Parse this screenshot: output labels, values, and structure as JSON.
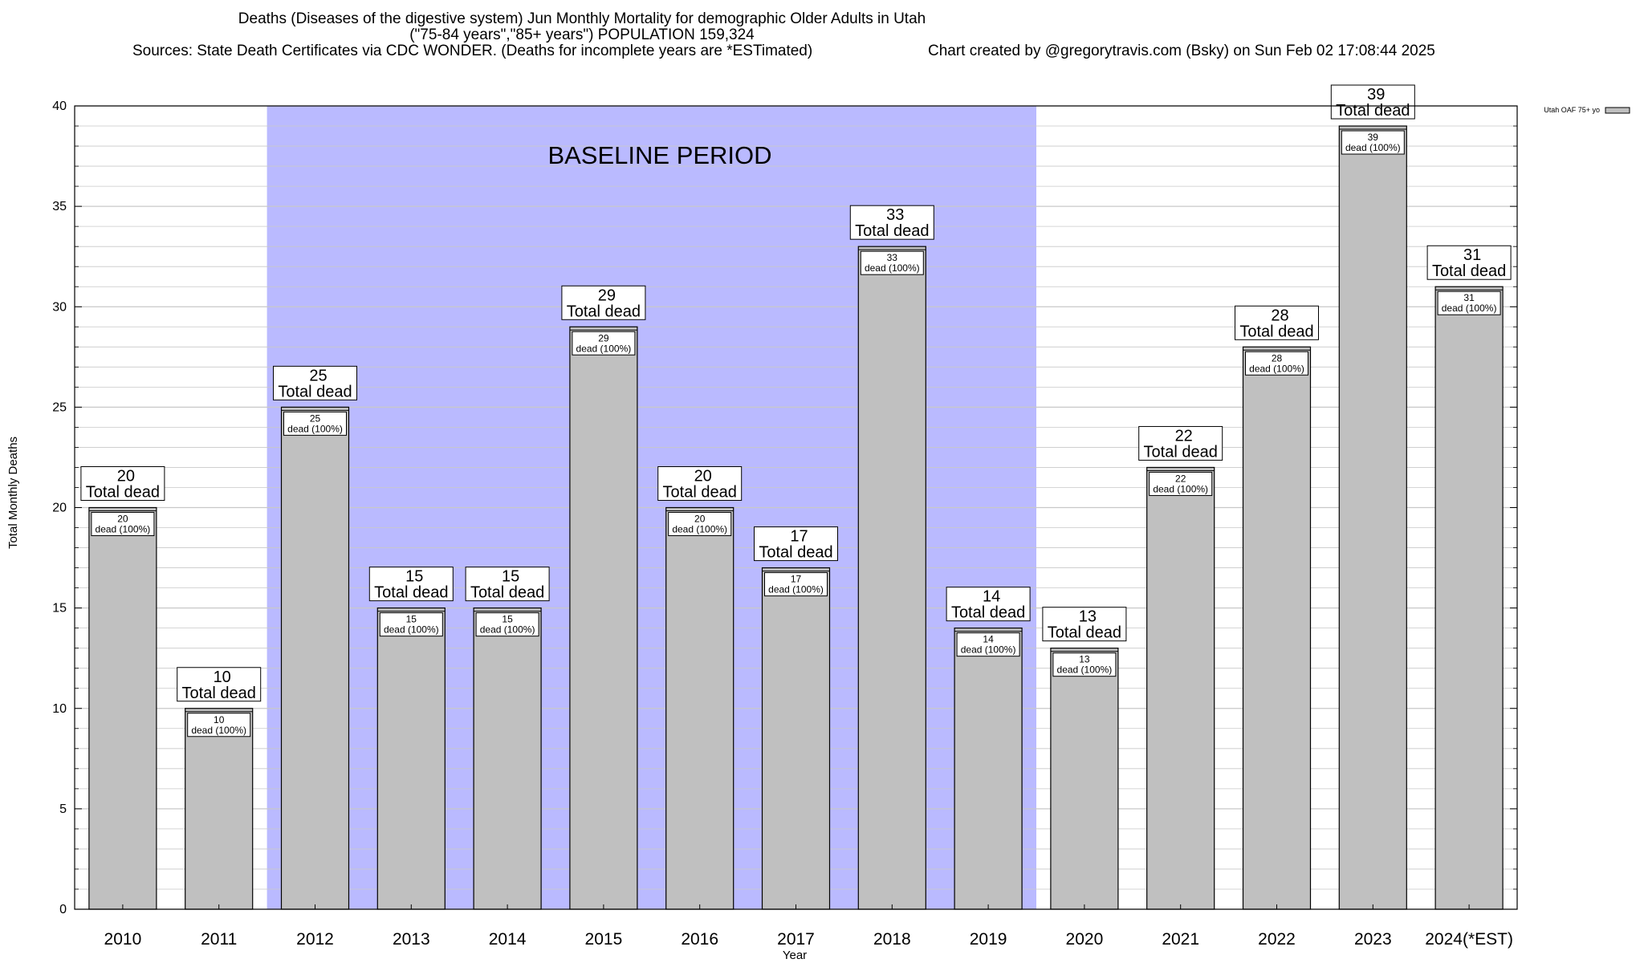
{
  "title": {
    "line1": "Deaths (Diseases of the digestive system) Jun Monthly Mortality for demographic Older Adults in Utah",
    "line2": "(\"75-84 years\",\"85+ years\") POPULATION 159,324",
    "line3_left": "Sources: State Death Certificates via CDC WONDER. (Deaths for incomplete years are *ESTimated)",
    "line3_right": "Chart created by @gregorytravis.com (Bsky) on Sun Feb 02 17:08:44 2025"
  },
  "colors": {
    "bar_fill": "#c0c0c0",
    "baseline_band": "#babaff",
    "grid": "#c8c8c8"
  },
  "chart_data": {
    "type": "bar",
    "title": "Deaths (Diseases of the digestive system) Jun Monthly Mortality for demographic Older Adults in Utah",
    "xlabel": "Year",
    "ylabel": "Total Monthly Deaths",
    "ylim": [
      0,
      40
    ],
    "yticks": [
      "0",
      "5",
      "10",
      "15",
      "20",
      "25",
      "30",
      "35",
      "40"
    ],
    "grid": true,
    "legend": {
      "position": "top-right",
      "entries": [
        "Utah OAF 75+ yo"
      ]
    },
    "categories": [
      "2010",
      "2011",
      "2012",
      "2013",
      "2014",
      "2015",
      "2016",
      "2017",
      "2018",
      "2019",
      "2020",
      "2021",
      "2022",
      "2023",
      "2024(*EST)"
    ],
    "series": [
      {
        "name": "Utah OAF 75+ yo",
        "values": [
          20,
          10,
          25,
          15,
          15,
          29,
          20,
          17,
          33,
          14,
          13,
          22,
          28,
          39,
          31
        ]
      }
    ],
    "total_label": "Total dead",
    "inner_label": "dead (100%)",
    "baseline": {
      "label": "BASELINE PERIOD",
      "from": "2012",
      "to": "2019"
    }
  }
}
